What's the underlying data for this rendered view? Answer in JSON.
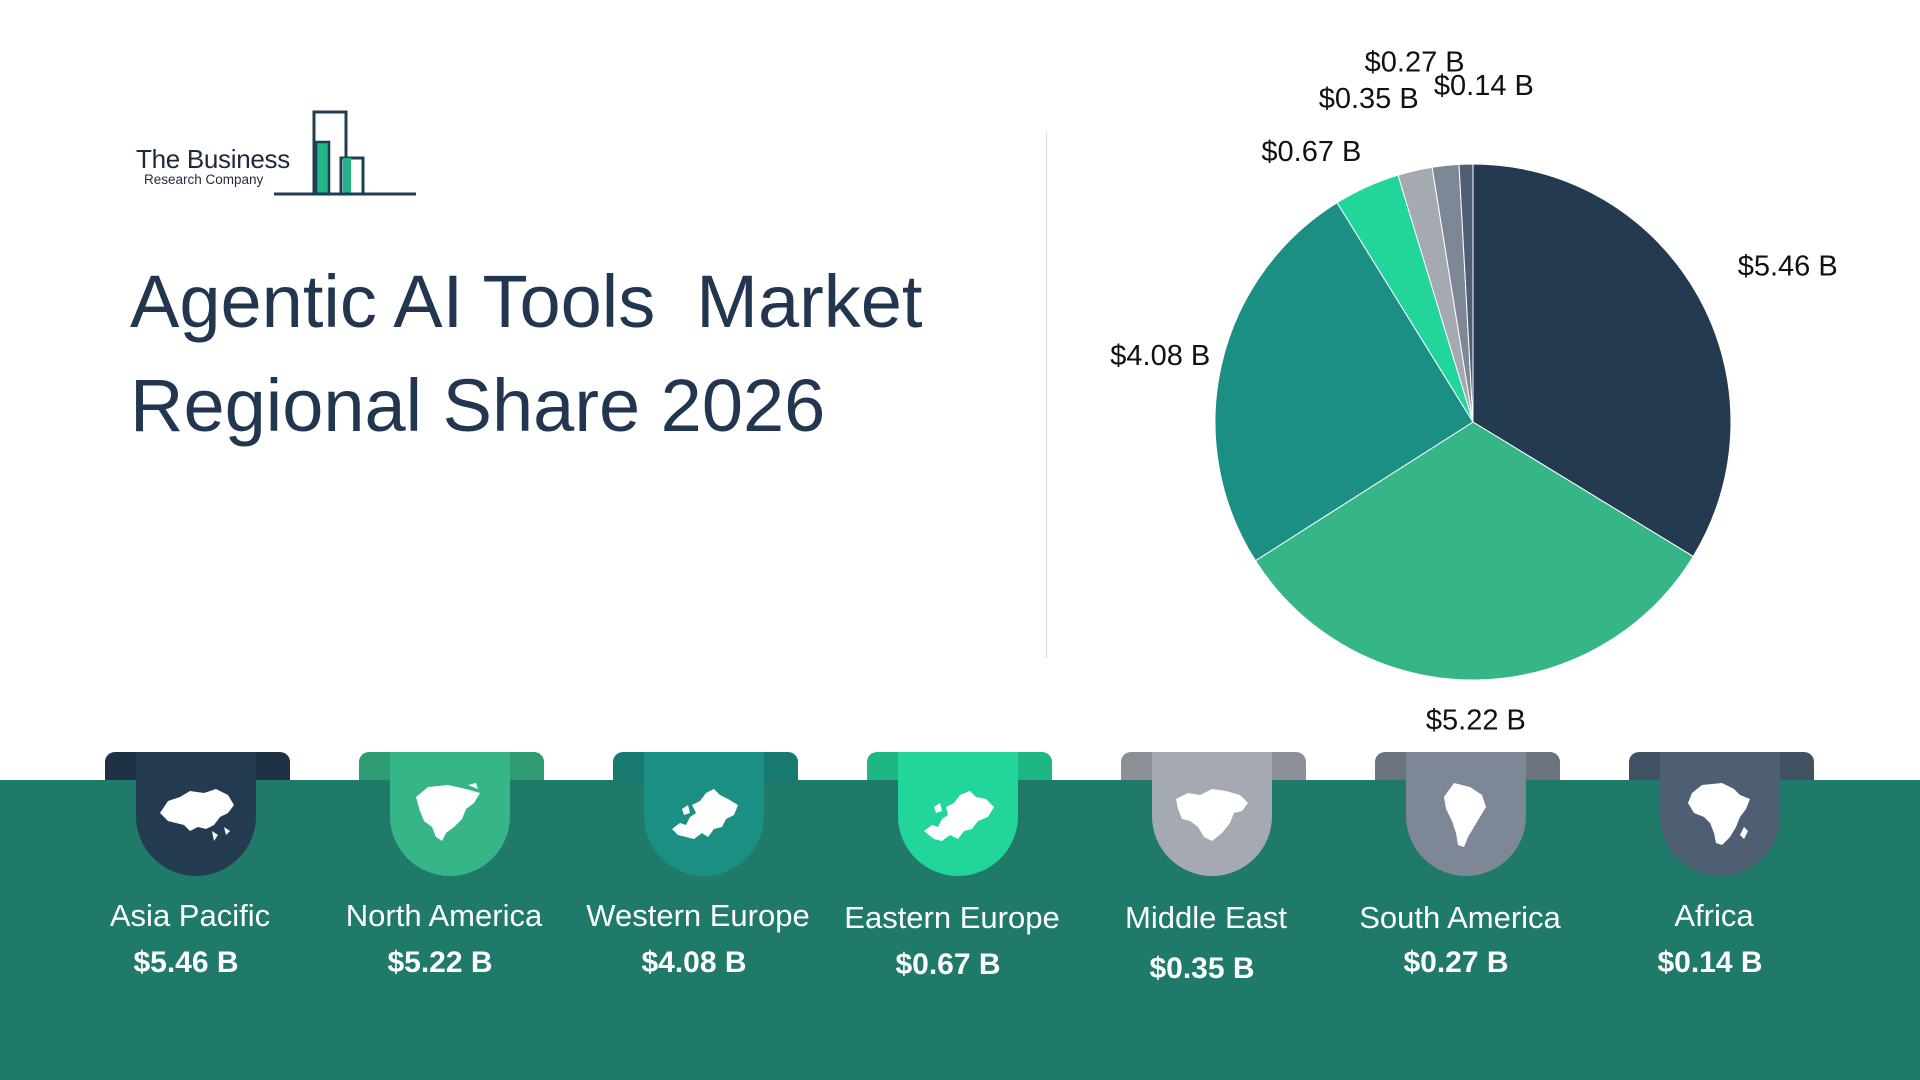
{
  "brand": {
    "name": "The Business",
    "subname": "Research Company"
  },
  "title": {
    "line1": "Agentic AI Tools  Market",
    "line2": "Regional Share 2026"
  },
  "chart_data": {
    "type": "pie",
    "title": "Agentic AI Tools  Market Regional Share 2026",
    "categories": [
      "Asia Pacific",
      "North America",
      "Western Europe",
      "Eastern Europe",
      "Middle East",
      "South America",
      "Africa"
    ],
    "values": [
      5.46,
      5.22,
      4.08,
      0.67,
      0.35,
      0.27,
      0.14
    ],
    "data_labels": [
      "$5.46 B",
      "$5.22 B",
      "$4.08 B",
      "$0.67 B",
      "$0.35 B",
      "$0.27 B",
      "$0.14 B"
    ],
    "colors": [
      "#243a50",
      "#36b687",
      "#1b8f84",
      "#22d69b",
      "#a5a9b1",
      "#7d8795",
      "#4e5f73"
    ],
    "start": "12 o'clock, clockwise"
  },
  "regions": [
    {
      "name": "Asia Pacific",
      "value": "$5.46 B",
      "color": "#243a50",
      "icon": "asia-map-icon"
    },
    {
      "name": "North America",
      "value": "$5.22 B",
      "color": "#36b687",
      "icon": "north-america-map-icon"
    },
    {
      "name": "Western Europe",
      "value": "$4.08 B",
      "color": "#1b8f84",
      "icon": "western-europe-map-icon"
    },
    {
      "name": "Eastern Europe",
      "value": "$0.67 B",
      "color": "#22d69b",
      "icon": "eastern-europe-map-icon"
    },
    {
      "name": "Middle East",
      "value": "$0.35 B",
      "color": "#a5a9b1",
      "icon": "middle-east-map-icon"
    },
    {
      "name": "South America",
      "value": "$0.27 B",
      "color": "#7d8795",
      "icon": "south-america-map-icon"
    },
    {
      "name": "Africa",
      "value": "$0.14 B",
      "color": "#4e5f73",
      "icon": "africa-map-icon"
    }
  ],
  "colors": {
    "band": "#207a6a",
    "title": "#22364f"
  }
}
